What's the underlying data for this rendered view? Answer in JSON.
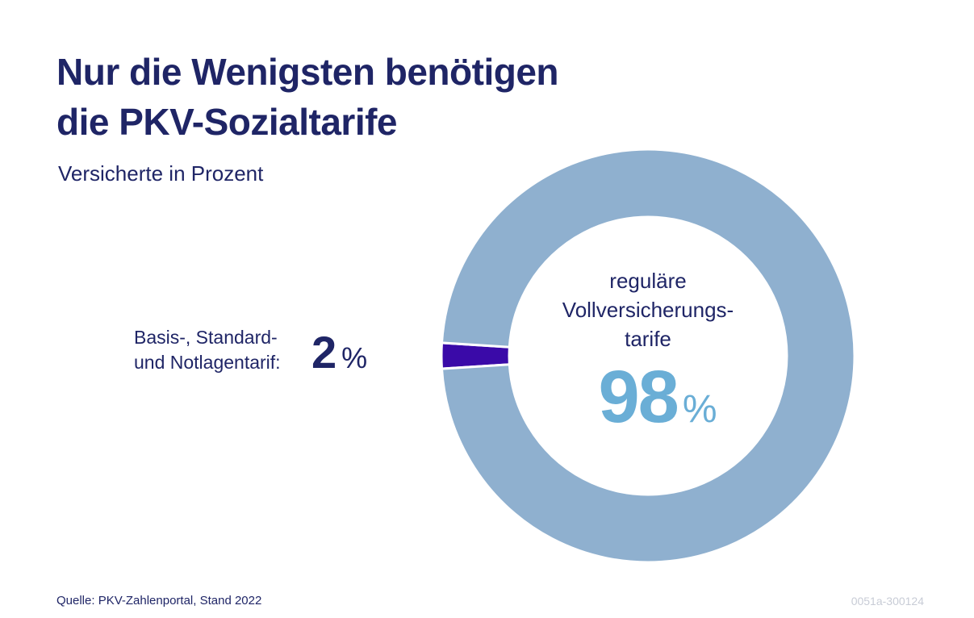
{
  "header": {
    "title_line1": "Nur die Wenigsten benötigen",
    "title_line2": "die PKV-Sozialtarife",
    "subtitle": "Versicherte in Prozent"
  },
  "chart_data": {
    "type": "pie",
    "title": "Nur die Wenigsten benötigen die PKV-Sozialtarife",
    "subtitle": "Versicherte in Prozent",
    "slices": [
      {
        "label_line1": "reguläre",
        "label_line2": "Vollversicherungs-",
        "label_line3": "tarife",
        "value": 98,
        "value_label": "98",
        "unit": "%",
        "color": "#8fb0cf"
      },
      {
        "label_line1": "Basis-, Standard-",
        "label_line2": "und Notlagentarif:",
        "value": 2,
        "value_label": "2",
        "unit": "%",
        "color": "#3a0aa8"
      }
    ],
    "style": "donut"
  },
  "colors": {
    "title": "#1f2566",
    "big_value": "#6aaed6",
    "code": "#c8ccd6"
  },
  "footer": {
    "source": "Quelle: PKV-Zahlenportal, Stand 2022",
    "code": "0051a-300124"
  }
}
